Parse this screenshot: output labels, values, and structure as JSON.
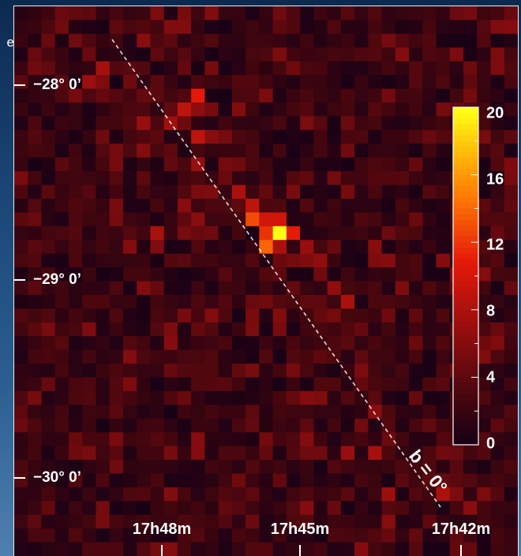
{
  "edge_text": "e",
  "chart_data": {
    "type": "heatmap",
    "title": "",
    "xlabel": "",
    "ylabel": "",
    "x_tick_labels": [
      "17h48m",
      "17h45m",
      "17h42m"
    ],
    "y_tick_labels": [
      "−28° 0’",
      "−29° 0’",
      "−30° 0’"
    ],
    "colorbar": {
      "min": 0,
      "max": 20,
      "tick_labels": [
        "20",
        "16",
        "12",
        "8",
        "4",
        "0"
      ]
    },
    "annotation": "b = 0°",
    "grid": false,
    "hotspots": [
      {
        "col": 19,
        "row": 16,
        "value": 20
      },
      {
        "col": 18,
        "row": 16,
        "value": 12
      },
      {
        "col": 18,
        "row": 17,
        "value": 14
      },
      {
        "col": 17,
        "row": 15,
        "value": 13
      },
      {
        "col": 18,
        "row": 15,
        "value": 10
      },
      {
        "col": 17,
        "row": 14,
        "value": 9
      },
      {
        "col": 19,
        "row": 15,
        "value": 10
      },
      {
        "col": 20,
        "row": 16,
        "value": 11
      },
      {
        "col": 19,
        "row": 17,
        "value": 8
      },
      {
        "col": 13,
        "row": 6,
        "value": 11
      },
      {
        "col": 12,
        "row": 7,
        "value": 9
      },
      {
        "col": 13,
        "row": 9,
        "value": 9
      },
      {
        "col": 10,
        "row": 16,
        "value": 8
      },
      {
        "col": 16,
        "row": 13,
        "value": 8
      },
      {
        "col": 21,
        "row": 17,
        "value": 7
      }
    ]
  }
}
